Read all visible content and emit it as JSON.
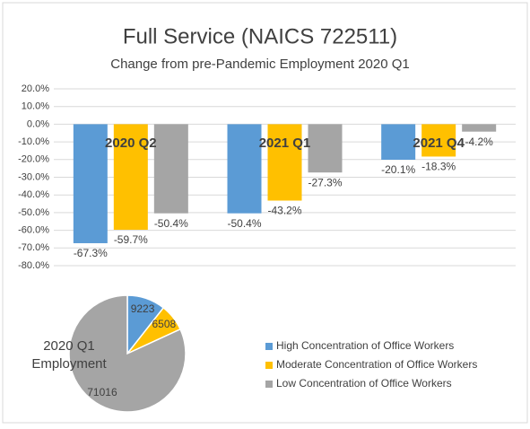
{
  "chart_data": [
    {
      "type": "bar",
      "title": "Full Service (NAICS 722511)",
      "subtitle": "Change from pre-Pandemic Employment 2020 Q1",
      "categories": [
        "2020 Q2",
        "2021 Q1",
        "2021 Q4"
      ],
      "series": [
        {
          "name": "High Concentration of Office Workers",
          "color": "#5b9bd5",
          "values": [
            -67.3,
            -50.4,
            -20.1
          ],
          "value_labels": [
            "-67.3%",
            "-50.4%",
            "-20.1%"
          ]
        },
        {
          "name": "Moderate Concentration of Office Workers",
          "color": "#ffc000",
          "values": [
            -59.7,
            -43.2,
            -18.3
          ],
          "value_labels": [
            "-59.7%",
            "-43.2%",
            "-18.3%"
          ]
        },
        {
          "name": "Low Concentration of Office Workers",
          "color": "#a5a5a5",
          "values": [
            -50.4,
            -27.3,
            -4.2
          ],
          "value_labels": [
            "-50.4%",
            "-27.3%",
            "-4.2%"
          ]
        }
      ],
      "ylim": [
        -80,
        20
      ],
      "yticks": [
        {
          "value": 20,
          "label": "20.0%"
        },
        {
          "value": 10,
          "label": "10.0%"
        },
        {
          "value": 0,
          "label": "0.0%"
        },
        {
          "value": -10,
          "label": "-10.0%"
        },
        {
          "value": -20,
          "label": "-20.0%"
        },
        {
          "value": -30,
          "label": "-30.0%"
        },
        {
          "value": -40,
          "label": "-40.0%"
        },
        {
          "value": -50,
          "label": "-50.0%"
        },
        {
          "value": -60,
          "label": "-60.0%"
        },
        {
          "value": -70,
          "label": "-70.0%"
        },
        {
          "value": -80,
          "label": "-80.0%"
        }
      ],
      "grid": true
    },
    {
      "type": "pie",
      "title": "2020 Q1 Employment",
      "values": [
        9223,
        6508,
        71016
      ],
      "colors": [
        "#5b9bd5",
        "#ffc000",
        "#a5a5a5"
      ]
    }
  ]
}
